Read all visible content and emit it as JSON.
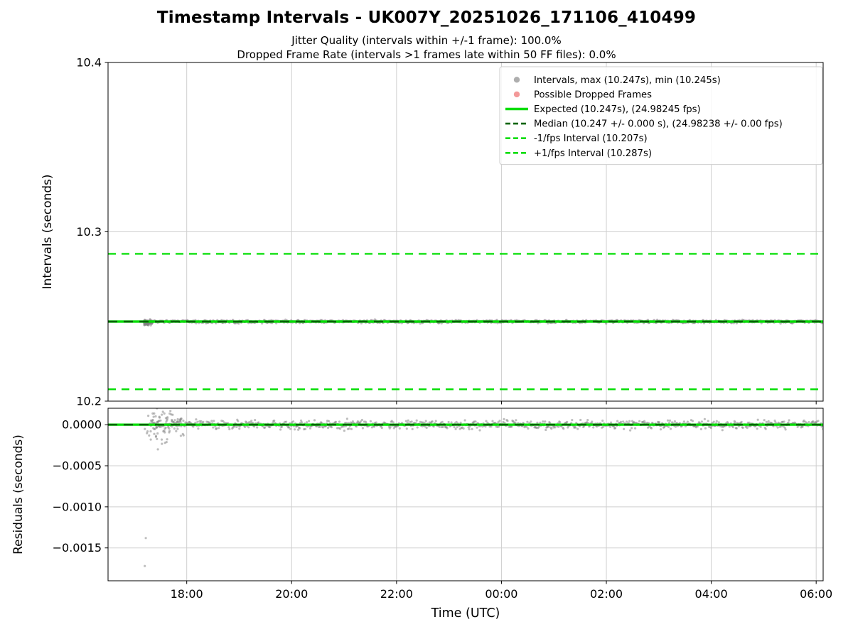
{
  "chart_data": [
    {
      "type": "scatter",
      "title": "Timestamp Intervals - UK007Y_20251026_171106_410499",
      "subtitle_jitter": "Jitter Quality (intervals within +/-1 frame): 100.0%",
      "subtitle_dropped": "Dropped Frame Rate (intervals >1 frames late within 50 FF files): 0.0%",
      "ylabel": "Intervals (seconds)",
      "ylim": [
        10.2,
        10.4
      ],
      "yticks": [
        {
          "value": 10.2,
          "label": "10.2"
        },
        {
          "value": 10.3,
          "label": "10.3"
        },
        {
          "value": 10.4,
          "label": "10.4"
        }
      ],
      "x_hours_lim": [
        16.5,
        30.133
      ],
      "xticks": [
        {
          "hour": 18,
          "label": "18:00"
        },
        {
          "hour": 20,
          "label": "20:00"
        },
        {
          "hour": 22,
          "label": "22:00"
        },
        {
          "hour": 24,
          "label": "00:00"
        },
        {
          "hour": 26,
          "label": "02:00"
        },
        {
          "hour": 28,
          "label": "04:00"
        },
        {
          "hour": 30,
          "label": "06:00"
        }
      ],
      "grid": true,
      "hlines": [
        {
          "name": "expected",
          "value": 10.247,
          "color": "#00dd00",
          "style": "solid",
          "width": 3.4
        },
        {
          "name": "median",
          "value": 10.247,
          "color": "#006400",
          "style": "dashed",
          "width": 2.6,
          "dash": "13 9"
        },
        {
          "name": "minus-1fps-interval",
          "value": 10.207,
          "color": "#00dd00",
          "style": "dashed",
          "width": 2.3,
          "dash": "11 8"
        },
        {
          "name": "plus-1fps-interval",
          "value": 10.287,
          "color": "#00dd00",
          "style": "dashed",
          "width": 2.3,
          "dash": "11 8"
        }
      ],
      "scatter": {
        "name": "Intervals",
        "color": "#7d7d7d",
        "opacity": 0.5,
        "radius": 1.7,
        "n": 950,
        "t_band_start": 17.3,
        "t_end_hour": 30.133,
        "center": 10.247,
        "band_spread": 0.0015,
        "max": 10.247,
        "min": 10.245,
        "start_cluster": {
          "t_hour": 17.18,
          "t_spread": 0.17,
          "center": 10.2464,
          "spread": 0.0028,
          "n": 55
        }
      },
      "outliers": [
        {
          "hour": 17.2,
          "value": 10.245
        },
        {
          "hour": 17.24,
          "value": 10.2452
        }
      ],
      "legend": {
        "position": "upper right",
        "entries": [
          {
            "label": "Intervals, max (10.247s), min (10.245s)",
            "marker": "dot",
            "color": "#9a9a9a"
          },
          {
            "label": "Possible Dropped Frames",
            "marker": "dot",
            "color": "#f08080"
          },
          {
            "label": "Expected (10.247s), (24.98245 fps)",
            "marker": "line",
            "color": "#00dd00",
            "style": "solid"
          },
          {
            "label": "Median (10.247 +/- 0.000 s), (24.98238 +/- 0.00 fps)",
            "marker": "line",
            "color": "#006400",
            "style": "dashed"
          },
          {
            "label": "-1/fps Interval (10.207s)",
            "marker": "line",
            "color": "#00dd00",
            "style": "dashed"
          },
          {
            "label": "+1/fps Interval (10.287s)",
            "marker": "line",
            "color": "#00dd00",
            "style": "dashed"
          }
        ]
      }
    },
    {
      "type": "scatter",
      "ylabel": "Residuals (seconds)",
      "xlabel": "Time (UTC)",
      "ylim": [
        -0.0019,
        0.0002
      ],
      "yticks": [
        {
          "value": 0.0,
          "label": "0.0000"
        },
        {
          "value": -0.0005,
          "label": "−0.0005"
        },
        {
          "value": -0.001,
          "label": "−0.0010"
        },
        {
          "value": -0.0015,
          "label": "−0.0015"
        }
      ],
      "x_hours_lim": [
        16.5,
        30.133
      ],
      "xticks": [
        {
          "hour": 18,
          "label": "18:00"
        },
        {
          "hour": 20,
          "label": "20:00"
        },
        {
          "hour": 22,
          "label": "22:00"
        },
        {
          "hour": 24,
          "label": "00:00"
        },
        {
          "hour": 26,
          "label": "02:00"
        },
        {
          "hour": 28,
          "label": "04:00"
        },
        {
          "hour": 30,
          "label": "06:00"
        }
      ],
      "grid": true,
      "hlines": [
        {
          "name": "expected-residual",
          "value": 0,
          "color": "#00dd00",
          "style": "solid",
          "width": 3.2
        },
        {
          "name": "median-residual",
          "value": 0,
          "color": "#006400",
          "style": "dashed",
          "width": 2.5,
          "dash": "13 9"
        }
      ],
      "scatter": {
        "name": "Residuals",
        "color": "#7d7d7d",
        "opacity": 0.5,
        "radius": 1.6,
        "n": 950,
        "t_band_start": 17.3,
        "t_end_hour": 30.133,
        "center": 0.0,
        "band_spread": 9e-05,
        "start_cluster": {
          "t_hour": 17.2,
          "t_spread": 0.75,
          "center": -1e-05,
          "spread": 0.00035,
          "n": 90
        }
      },
      "outliers": [
        {
          "hour": 17.22,
          "value": -0.00138
        },
        {
          "hour": 17.2,
          "value": -0.00172
        },
        {
          "hour": 17.45,
          "value": -0.0003
        }
      ]
    }
  ]
}
